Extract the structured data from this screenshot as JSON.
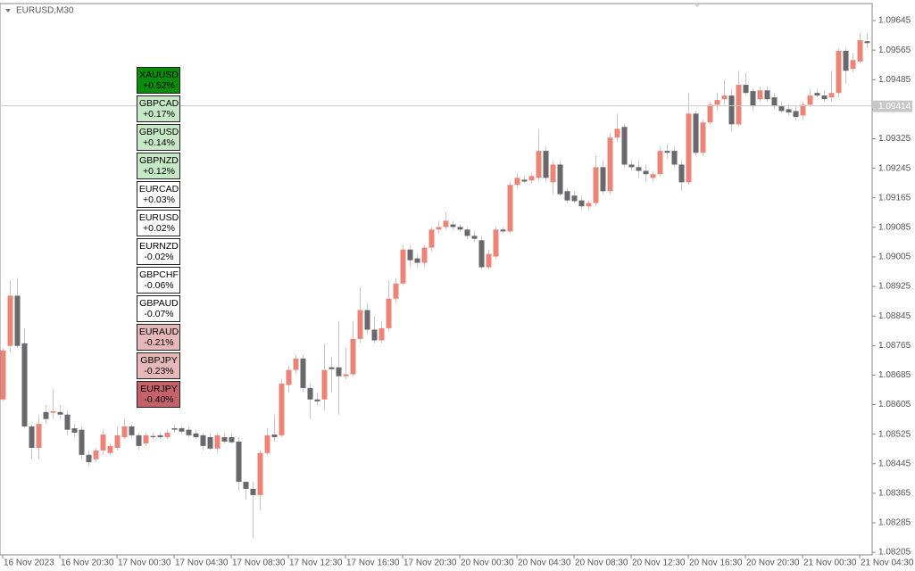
{
  "chart_data": {
    "type": "candlestick",
    "title": "EURUSD,M30",
    "categories": [
      "16 Nov 2023",
      null,
      null,
      null,
      null,
      null,
      null,
      null,
      "16 Nov 20:30",
      null,
      null,
      null,
      null,
      null,
      null,
      null,
      "17 Nov 00:30",
      null,
      null,
      null,
      null,
      null,
      null,
      null,
      "17 Nov 04:30",
      null,
      null,
      null,
      null,
      null,
      null,
      null,
      "17 Nov 08:30",
      null,
      null,
      null,
      null,
      null,
      null,
      null,
      "17 Nov 12:30",
      null,
      null,
      null,
      null,
      null,
      null,
      null,
      "17 Nov 16:30",
      null,
      null,
      null,
      null,
      null,
      null,
      null,
      "17 Nov 20:30",
      null,
      null,
      null,
      null,
      null,
      null,
      null,
      "20 Nov 00:30",
      null,
      null,
      null,
      null,
      null,
      null,
      null,
      "20 Nov 04:30",
      null,
      null,
      null,
      null,
      null,
      null,
      null,
      "20 Nov 08:30",
      null,
      null,
      null,
      null,
      null,
      null,
      null,
      "20 Nov 12:30",
      null,
      null,
      null,
      null,
      null,
      null,
      null,
      "20 Nov 16:30",
      null,
      null,
      null,
      null,
      null,
      null,
      null,
      "20 Nov 20:30",
      null,
      null,
      null,
      null,
      null,
      null,
      null,
      "21 Nov 00:30",
      null,
      null,
      null,
      null,
      null,
      null,
      null,
      "21 Nov 04:30",
      null
    ],
    "open": [
      1.08619,
      1.08764,
      1.089,
      1.08771,
      1.08546,
      1.08488,
      1.08585,
      1.08583,
      1.08585,
      1.08578,
      1.08541,
      1.08537,
      1.08469,
      1.08457,
      1.08481,
      1.08474,
      1.08488,
      1.08517,
      1.08546,
      1.08522,
      1.085,
      1.0852,
      1.08522,
      1.08517,
      1.08541,
      1.08541,
      1.08537,
      1.08527,
      1.08522,
      1.08517,
      1.08486,
      1.08517,
      1.08517,
      1.08505,
      1.08396,
      1.08377,
      1.0836,
      1.08474,
      1.08524,
      1.08522,
      1.08658,
      1.08699,
      1.0873,
      1.0865,
      1.08619,
      1.08619,
      1.08706,
      1.08706,
      1.08682,
      1.08687,
      1.08783,
      1.08861,
      1.08808,
      1.08779,
      1.08812,
      1.08892,
      1.08933,
      1.09025,
      1.09001,
      1.08989,
      1.0903,
      1.09079,
      1.09086,
      1.09093,
      1.09086,
      1.09079,
      1.09062,
      1.0905,
      1.08977,
      1.09006,
      1.09079,
      1.09074,
      1.092,
      1.09214,
      1.09212,
      1.09219,
      1.09292,
      1.09207,
      1.09255,
      1.09183,
      1.09171,
      1.09158,
      1.09142,
      1.09151,
      1.09248,
      1.09183,
      1.09328,
      1.09357,
      1.09255,
      1.09248,
      1.09238,
      1.09219,
      1.09229,
      1.09292,
      1.09292,
      1.09255,
      1.09207,
      1.09393,
      1.09287,
      1.09369,
      1.09417,
      1.09432,
      1.09442,
      1.09364,
      1.09471,
      1.09454,
      1.09432,
      1.09456,
      1.09437,
      1.09413,
      1.09405,
      1.094,
      1.09388,
      1.09417,
      1.09449,
      1.09442,
      1.09437,
      1.09449,
      1.09563,
      1.09514,
      1.09534,
      1.09589
    ],
    "high": [
      1.08759,
      1.08943,
      1.08948,
      1.08812,
      1.08551,
      1.08578,
      1.08602,
      1.08648,
      1.08602,
      1.0859,
      1.08553,
      1.08546,
      1.08481,
      1.08488,
      1.08537,
      1.085,
      1.08546,
      1.08566,
      1.08551,
      1.08529,
      1.08529,
      1.08529,
      1.08529,
      1.08537,
      1.08551,
      1.08546,
      1.08546,
      1.08537,
      1.08529,
      1.08527,
      1.08529,
      1.08527,
      1.08527,
      1.08517,
      1.08396,
      1.08396,
      1.08481,
      1.08541,
      1.08578,
      1.08674,
      1.08711,
      1.0874,
      1.0874,
      1.08662,
      1.08638,
      1.08771,
      1.08735,
      1.08832,
      1.08759,
      1.08832,
      1.08924,
      1.0888,
      1.08844,
      1.08832,
      1.08941,
      1.08948,
      1.09037,
      1.09037,
      1.09013,
      1.09037,
      1.09086,
      1.09103,
      1.09127,
      1.09103,
      1.09093,
      1.09086,
      1.09074,
      1.09062,
      1.09025,
      1.09086,
      1.09086,
      1.09207,
      1.09231,
      1.09224,
      1.09231,
      1.09352,
      1.09304,
      1.09267,
      1.09267,
      1.0919,
      1.09183,
      1.09171,
      1.09158,
      1.09279,
      1.09267,
      1.0934,
      1.09393,
      1.09364,
      1.09267,
      1.09267,
      1.09255,
      1.09238,
      1.09304,
      1.09311,
      1.09304,
      1.09267,
      1.09449,
      1.094,
      1.09376,
      1.09425,
      1.09449,
      1.09485,
      1.09461,
      1.09509,
      1.09505,
      1.09461,
      1.09466,
      1.09466,
      1.09449,
      1.09425,
      1.09417,
      1.09413,
      1.09425,
      1.09461,
      1.09461,
      1.09456,
      1.09509,
      1.0957,
      1.0957,
      1.09558,
      1.09611,
      1.09611
    ],
    "low": [
      1.08614,
      1.08747,
      1.08759,
      1.08541,
      1.08457,
      1.08457,
      1.08553,
      1.08566,
      1.08566,
      1.08522,
      1.08517,
      1.08457,
      1.0844,
      1.08449,
      1.08469,
      1.08469,
      1.08481,
      1.08512,
      1.08512,
      1.08481,
      1.08493,
      1.08512,
      1.08512,
      1.08512,
      1.08529,
      1.08527,
      1.08517,
      1.08512,
      1.08481,
      1.08481,
      1.08474,
      1.085,
      1.085,
      1.08372,
      1.08348,
      1.08244,
      1.08319,
      1.08469,
      1.08505,
      1.08517,
      1.08638,
      1.08687,
      1.08638,
      1.08566,
      1.08602,
      1.0859,
      1.08638,
      1.08578,
      1.08674,
      1.08682,
      1.08771,
      1.08795,
      1.08771,
      1.08771,
      1.08803,
      1.0888,
      1.08929,
      1.08977,
      1.08977,
      1.08977,
      1.09021,
      1.09069,
      1.09079,
      1.09079,
      1.09074,
      1.09054,
      1.09045,
      1.08972,
      1.08972,
      1.09001,
      1.09069,
      1.09069,
      1.0919,
      1.09204,
      1.09204,
      1.09209,
      1.09207,
      1.09175,
      1.09171,
      1.09151,
      1.09151,
      1.09132,
      1.09132,
      1.09142,
      1.09175,
      1.09175,
      1.09316,
      1.09248,
      1.09238,
      1.09219,
      1.09207,
      1.09209,
      1.09224,
      1.09272,
      1.09248,
      1.09183,
      1.092,
      1.09279,
      1.09279,
      1.09364,
      1.094,
      1.09417,
      1.09345,
      1.09359,
      1.09442,
      1.094,
      1.09425,
      1.09425,
      1.09405,
      1.09396,
      1.09388,
      1.09376,
      1.09376,
      1.09413,
      1.09437,
      1.09425,
      1.09425,
      1.09437,
      1.09473,
      1.09505,
      1.09529,
      1.0957
    ],
    "close": [
      1.08752,
      1.089,
      1.08764,
      1.08546,
      1.08488,
      1.08553,
      1.08566,
      1.08587,
      1.08578,
      1.08537,
      1.08529,
      1.08469,
      1.08449,
      1.08481,
      1.08524,
      1.08493,
      1.08522,
      1.08546,
      1.08522,
      1.08493,
      1.08522,
      1.08517,
      1.08517,
      1.08529,
      1.08537,
      1.08532,
      1.08522,
      1.08517,
      1.08493,
      1.08486,
      1.08522,
      1.08505,
      1.08503,
      1.08396,
      1.08377,
      1.0836,
      1.08474,
      1.08522,
      1.08517,
      1.08662,
      1.08699,
      1.0873,
      1.0865,
      1.08619,
      1.08614,
      1.08699,
      1.08701,
      1.08682,
      1.08687,
      1.08783,
      1.08861,
      1.08808,
      1.08779,
      1.08812,
      1.08892,
      1.08933,
      1.09025,
      1.08996,
      1.08989,
      1.0903,
      1.09079,
      1.09086,
      1.09103,
      1.09086,
      1.09079,
      1.09062,
      1.09054,
      1.08977,
      1.09013,
      1.09079,
      1.09074,
      1.092,
      1.09219,
      1.09209,
      1.09224,
      1.09292,
      1.09219,
      1.09255,
      1.09175,
      1.09158,
      1.09156,
      1.09142,
      1.09151,
      1.09248,
      1.09183,
      1.09328,
      1.09352,
      1.09255,
      1.09248,
      1.09238,
      1.09229,
      1.09229,
      1.09292,
      1.09287,
      1.09255,
      1.09207,
      1.09393,
      1.09287,
      1.09369,
      1.09417,
      1.0943,
      1.09442,
      1.09364,
      1.09471,
      1.09449,
      1.09413,
      1.09456,
      1.09432,
      1.09413,
      1.094,
      1.09396,
      1.09384,
      1.09417,
      1.09442,
      1.09442,
      1.09432,
      1.09449,
      1.09563,
      1.09509,
      1.09538,
      1.09592,
      1.09584
    ],
    "up_color": "#ec8478",
    "down_color": "#68686e",
    "ylim": [
      1.08198,
      1.09691
    ],
    "yticks": [
      1.09645,
      1.09565,
      1.09485,
      1.09405,
      1.09325,
      1.09245,
      1.09165,
      1.09085,
      1.09005,
      1.08925,
      1.08845,
      1.08765,
      1.08685,
      1.08605,
      1.08525,
      1.08445,
      1.08365,
      1.08285,
      1.08205
    ],
    "hline": {
      "value": 1.09414,
      "color": "#c8c8c8"
    }
  },
  "strength_panel": {
    "symbols": [
      "XAUUSD",
      "GBPCAD",
      "GBPUSD",
      "GBPNZD",
      "EURCAD",
      "EURUSD",
      "EURNZD",
      "GBPCHF",
      "GBPAUD",
      "EURAUD",
      "GBPJPY",
      "EURJPY"
    ],
    "values": [
      0.52,
      0.17,
      0.14,
      0.12,
      0.03,
      0.02,
      -0.02,
      -0.06,
      -0.07,
      -0.21,
      -0.23,
      -0.4
    ],
    "value_labels": [
      "+0.52%",
      "+0.17%",
      "+0.14%",
      "+0.12%",
      "+0.03%",
      "+0.02%",
      "-0.02%",
      "-0.06%",
      "-0.07%",
      "-0.21%",
      "-0.23%",
      "-0.40%"
    ],
    "colors": [
      "#0b8c0b",
      "#c6e8c6",
      "#c6e8c6",
      "#c6e8c6",
      "#ffffff",
      "#ffffff",
      "#ffffff",
      "#ffffff",
      "#ffffff",
      "#e6b8ba",
      "#e6b8ba",
      "#c4626a"
    ]
  }
}
